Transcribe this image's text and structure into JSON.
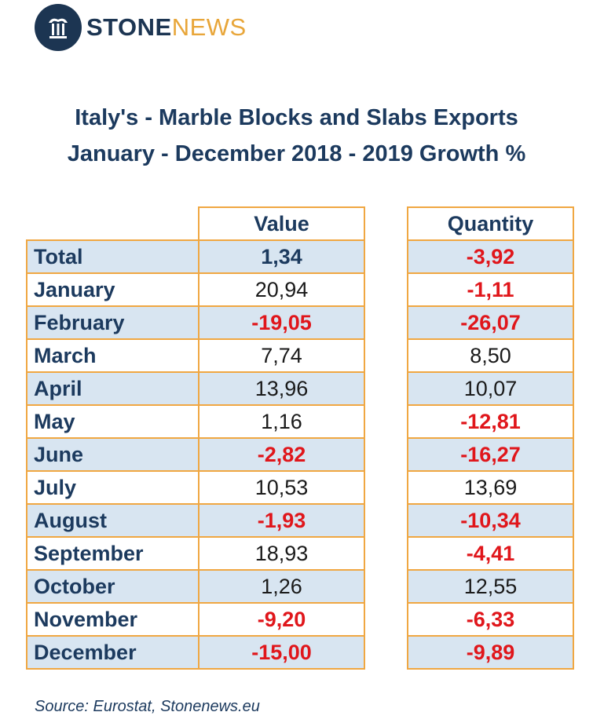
{
  "logo": {
    "word1": "STONE",
    "word2": "NEWS"
  },
  "title_line1": "Italy's - Marble Blocks and Slabs Exports",
  "title_line2": "January - December  2018 - 2019 Growth %",
  "source": "Source: Eurostat, Stonenews.eu",
  "colors": {
    "header_text": "#1c3a5e",
    "border": "#f0a742",
    "shade": "#d8e5f1",
    "negative": "#e0161b",
    "logo_dark": "#1c3552",
    "logo_accent": "#e8a63a"
  },
  "chart_data": {
    "type": "table",
    "columns": [
      "Value",
      "Quantity"
    ],
    "rows": [
      {
        "label": "Total",
        "value": "1,34",
        "quantity": "-3,92"
      },
      {
        "label": "January",
        "value": "20,94",
        "quantity": "-1,11"
      },
      {
        "label": "February",
        "value": "-19,05",
        "quantity": "-26,07"
      },
      {
        "label": "March",
        "value": "7,74",
        "quantity": "8,50"
      },
      {
        "label": "April",
        "value": "13,96",
        "quantity": "10,07"
      },
      {
        "label": "May",
        "value": "1,16",
        "quantity": "-12,81"
      },
      {
        "label": "June",
        "value": "-2,82",
        "quantity": "-16,27"
      },
      {
        "label": "July",
        "value": "10,53",
        "quantity": "13,69"
      },
      {
        "label": "August",
        "value": "-1,93",
        "quantity": "-10,34"
      },
      {
        "label": "September",
        "value": "18,93",
        "quantity": "-4,41"
      },
      {
        "label": "October",
        "value": "1,26",
        "quantity": "12,55"
      },
      {
        "label": "November",
        "value": "-9,20",
        "quantity": "-6,33"
      },
      {
        "label": "December",
        "value": "-15,00",
        "quantity": "-9,89"
      }
    ]
  }
}
